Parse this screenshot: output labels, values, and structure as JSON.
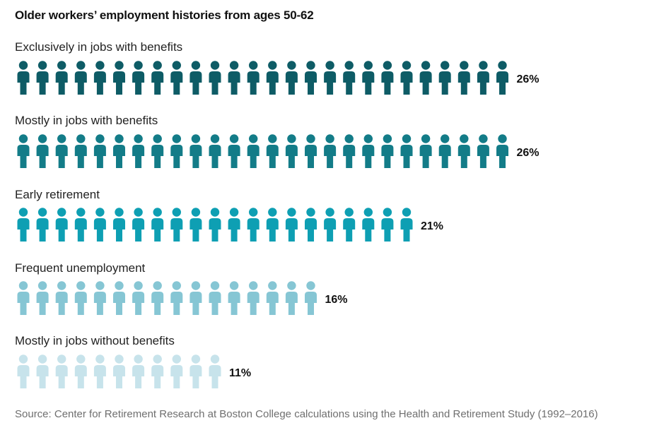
{
  "chart_data": {
    "type": "pictograph",
    "title": "Older workers’ employment histories from ages 50-62",
    "unit": "percent of older workers (one figure per 1%)",
    "categories": [
      {
        "label": "Exclusively in jobs with benefits",
        "value": 26,
        "value_label": "26%",
        "color": "#0e5c66"
      },
      {
        "label": "Mostly in jobs with benefits",
        "value": 26,
        "value_label": "26%",
        "color": "#137c88"
      },
      {
        "label": "Early retirement",
        "value": 21,
        "value_label": "21%",
        "color": "#0e9fb3"
      },
      {
        "label": "Frequent unemployment",
        "value": 16,
        "value_label": "16%",
        "color": "#86c6d4"
      },
      {
        "label": "Mostly in jobs without benefits",
        "value": 11,
        "value_label": "11%",
        "color": "#c7e3eb"
      }
    ],
    "source": "Source: Center for Retirement Research at Boston College calculations using the Health and Retirement Study (1992–2016)"
  }
}
